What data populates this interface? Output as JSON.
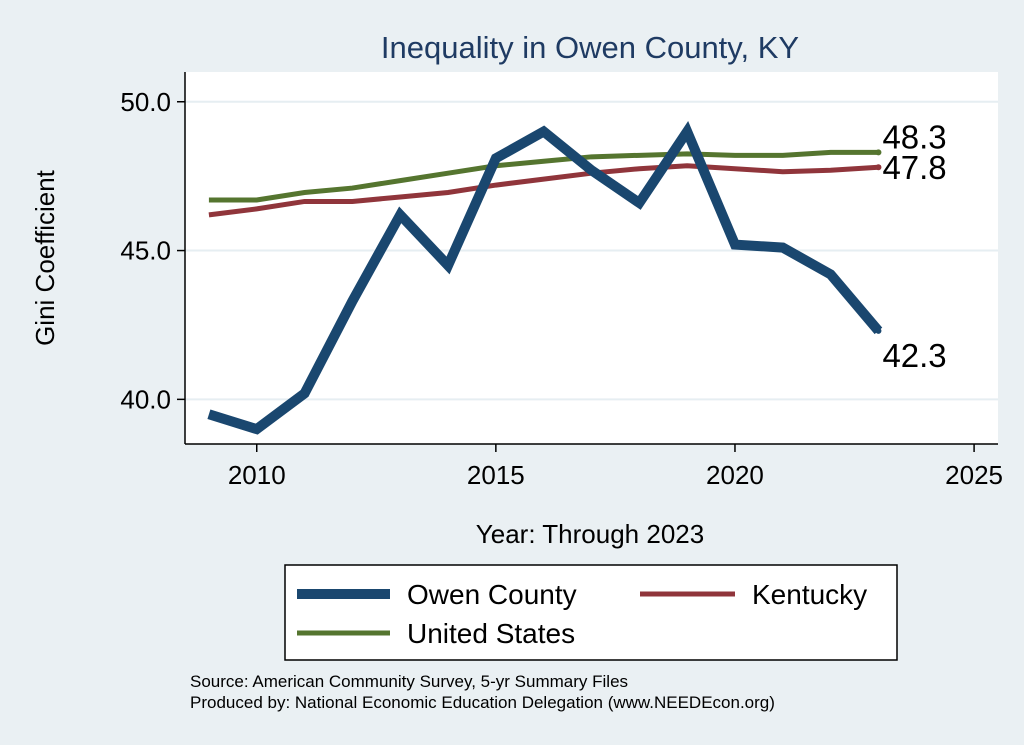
{
  "chart_data": {
    "type": "line",
    "title": "Inequality in Owen County, KY",
    "xlabel": "Year: Through 2023",
    "ylabel": "Gini Coefficient",
    "xlim": [
      2008.5,
      2025.5
    ],
    "ylim": [
      38.5,
      51
    ],
    "xticks": [
      2010,
      2015,
      2020,
      2025
    ],
    "yticks": [
      40,
      45,
      50
    ],
    "ytick_labels": [
      "40.0",
      "45.0",
      "50.0"
    ],
    "grid": true,
    "x": [
      2009,
      2010,
      2011,
      2012,
      2013,
      2014,
      2015,
      2016,
      2017,
      2018,
      2019,
      2020,
      2021,
      2022,
      2023
    ],
    "series": [
      {
        "name": "Owen County",
        "color": "#1a476f",
        "width": 10,
        "values": [
          39.5,
          39.0,
          40.2,
          43.3,
          46.2,
          44.5,
          48.1,
          49.0,
          47.7,
          46.6,
          49.0,
          45.2,
          45.1,
          44.2,
          42.3
        ],
        "end_label": "42.3"
      },
      {
        "name": "Kentucky",
        "color": "#90353b",
        "width": 5,
        "values": [
          46.2,
          46.4,
          46.65,
          46.65,
          46.8,
          46.95,
          47.2,
          47.4,
          47.6,
          47.75,
          47.85,
          47.75,
          47.65,
          47.7,
          47.8
        ],
        "end_label": "47.8"
      },
      {
        "name": "United States",
        "color": "#55752f",
        "width": 5,
        "values": [
          46.7,
          46.7,
          46.95,
          47.1,
          47.35,
          47.6,
          47.85,
          48.0,
          48.15,
          48.2,
          48.25,
          48.2,
          48.2,
          48.3,
          48.3
        ],
        "end_label": "48.3"
      }
    ],
    "legend": {
      "position": "bottom",
      "entries": [
        "Owen County",
        "Kentucky",
        "United States"
      ]
    }
  },
  "notes": {
    "source": "Source: American Community Survey, 5-yr Summary Files",
    "produced_by": "Produced by: National Economic Education Delegation (www.NEEDEcon.org)"
  }
}
